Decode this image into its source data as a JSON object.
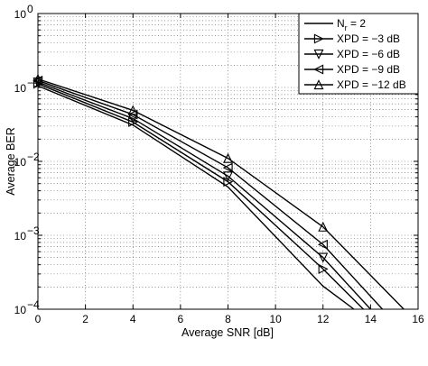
{
  "chart_data": {
    "type": "line",
    "title": "",
    "xlabel": "Average SNR [dB]",
    "ylabel": "Average BER",
    "xlim": [
      0,
      16
    ],
    "ylim": [
      0.0001,
      1
    ],
    "yscale": "log",
    "grid": true,
    "legend_position": "top-right",
    "x_ticks": [
      "0",
      "2",
      "4",
      "6",
      "8",
      "10",
      "12",
      "14",
      "16"
    ],
    "y_ticks": [
      {
        "base": "10",
        "exp": "0",
        "value": 1
      },
      {
        "base": "10",
        "exp": "−1",
        "value": 0.1
      },
      {
        "base": "10",
        "exp": "−2",
        "value": 0.01
      },
      {
        "base": "10",
        "exp": "−3",
        "value": 0.001
      },
      {
        "base": "10",
        "exp": "−4",
        "value": 0.0001
      }
    ],
    "series": [
      {
        "name": "N_r = 2",
        "label_main": "N",
        "label_sub": "r",
        "label_rest": " = 2",
        "marker": "none",
        "x": [
          0,
          4,
          8,
          12,
          13.3
        ],
        "y": [
          0.105,
          0.031,
          0.0045,
          0.000205,
          0.0001
        ]
      },
      {
        "name": "XPD = −3 dB",
        "label": "XPD = −3 dB",
        "marker": "triangle-right",
        "x": [
          0,
          4,
          8,
          12,
          13.7
        ],
        "y": [
          0.112,
          0.034,
          0.0053,
          0.00035,
          0.0001
        ]
      },
      {
        "name": "XPD = −6 dB",
        "label": "XPD = −6 dB",
        "marker": "triangle-down",
        "x": [
          0,
          4,
          8,
          12,
          14.0
        ],
        "y": [
          0.118,
          0.038,
          0.0063,
          0.0005,
          0.0001
        ]
      },
      {
        "name": "XPD = −9 dB",
        "label": "XPD = −9 dB",
        "marker": "triangle-left",
        "x": [
          0,
          4,
          8,
          12,
          14.5
        ],
        "y": [
          0.124,
          0.043,
          0.0082,
          0.00075,
          0.0001
        ]
      },
      {
        "name": "XPD = −12 dB",
        "label": "XPD = −12 dB",
        "marker": "triangle-up",
        "x": [
          0,
          4,
          8,
          12,
          15.4
        ],
        "y": [
          0.13,
          0.049,
          0.011,
          0.0013,
          0.0001
        ]
      }
    ]
  }
}
